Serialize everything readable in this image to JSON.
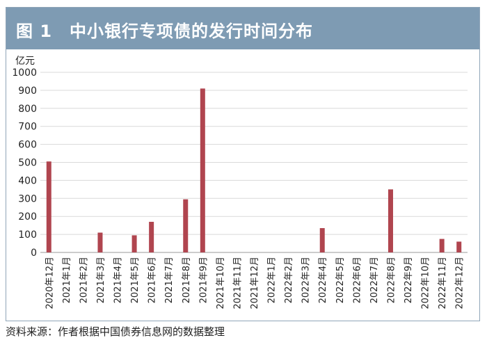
{
  "title": "图 1　中小银行专项债的发行时间分布",
  "source": "资料来源：作者根据中国债券信息网的数据整理",
  "colors": {
    "header": "#7e9bb3",
    "bar": "#b0454f",
    "grid": "#d9d9d9"
  },
  "chart_data": {
    "type": "bar",
    "ylabel": "亿元",
    "ylim": [
      0,
      1000
    ],
    "yticks": [
      0,
      100,
      200,
      300,
      400,
      500,
      600,
      700,
      800,
      900,
      1000
    ],
    "grid": true,
    "categories": [
      "2020年12月",
      "2021年1月",
      "2021年2月",
      "2021年3月",
      "2021年4月",
      "2021年5月",
      "2021年6月",
      "2021年7月",
      "2021年8月",
      "2021年9月",
      "2021年10月",
      "2021年11月",
      "2021年12月",
      "2022年1月",
      "2022年2月",
      "2022年3月",
      "2022年4月",
      "2022年5月",
      "2022年6月",
      "2022年7月",
      "2022年8月",
      "2022年9月",
      "2022年10月",
      "2022年11月",
      "2022年12月"
    ],
    "values": [
      505,
      0,
      0,
      110,
      0,
      95,
      170,
      0,
      295,
      910,
      0,
      0,
      0,
      0,
      0,
      0,
      135,
      0,
      0,
      0,
      350,
      0,
      0,
      75,
      60
    ]
  }
}
